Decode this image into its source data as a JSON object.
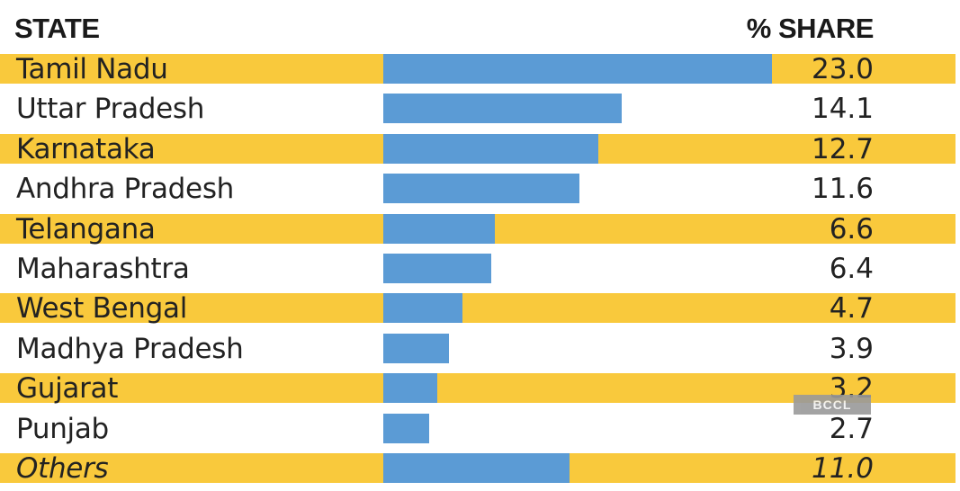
{
  "colors": {
    "band": "#f9c93c",
    "bar": "#5b9bd5",
    "text": "#222222"
  },
  "watermark": "BCCL",
  "chart_data": {
    "type": "bar",
    "orientation": "horizontal",
    "column_headers": [
      "STATE",
      "% SHARE"
    ],
    "categories": [
      "Tamil Nadu",
      "Uttar Pradesh",
      "Karnataka",
      "Andhra Pradesh",
      "Telangana",
      "Maharashtra",
      "West Bengal",
      "Madhya Pradesh",
      "Gujarat",
      "Punjab",
      "Others"
    ],
    "value_labels": [
      "23.0",
      "14.1",
      "12.7",
      "11.6",
      "6.6",
      "6.4",
      "4.7",
      "3.9",
      "3.2",
      "2.7",
      "11.0"
    ],
    "values": [
      23.0,
      14.1,
      12.7,
      11.6,
      6.6,
      6.4,
      4.7,
      3.9,
      3.2,
      2.7,
      11.0
    ],
    "banded_rows": [
      true,
      false,
      true,
      false,
      true,
      false,
      true,
      false,
      true,
      false,
      true
    ],
    "italic_rows": [
      false,
      false,
      false,
      false,
      false,
      false,
      false,
      false,
      false,
      false,
      true
    ],
    "xlim": [
      0,
      23.0
    ],
    "grid": false
  }
}
